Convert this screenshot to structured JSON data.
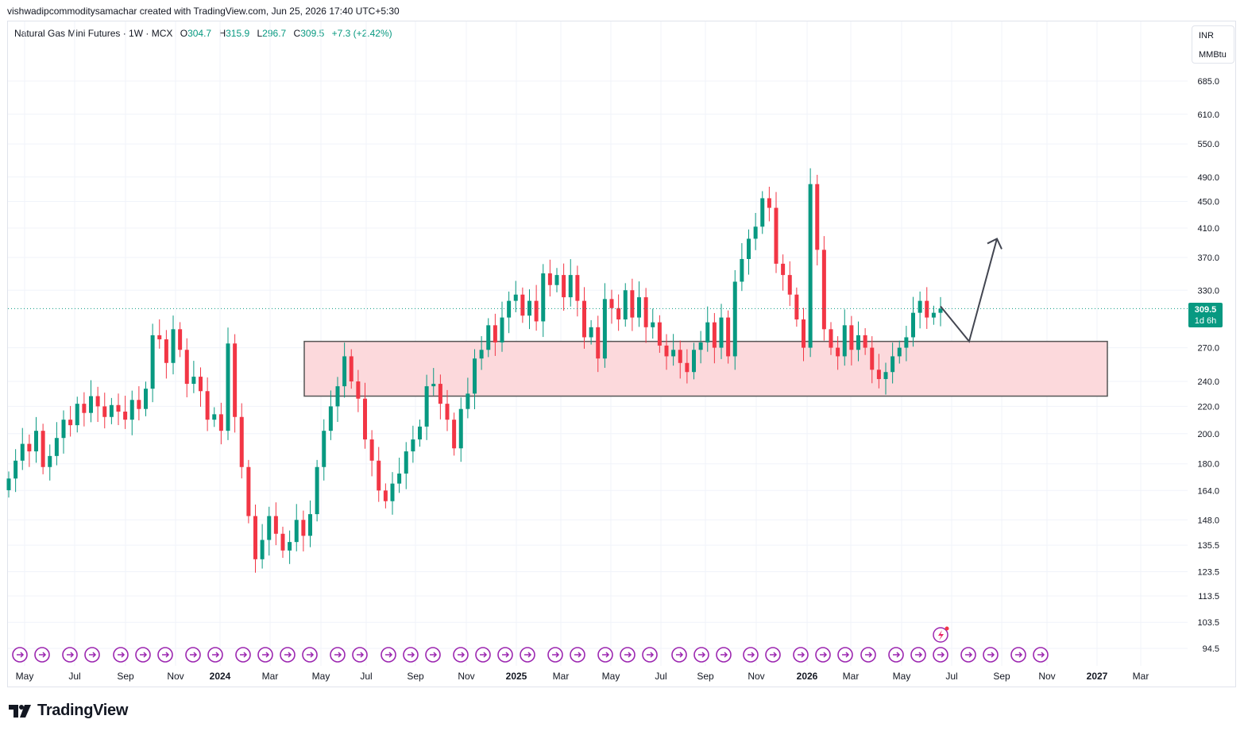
{
  "caption": "vishwadipcommoditysamachar created with TradingView.com, Jun 25, 2026 17:40 UTC+5:30",
  "legend": {
    "symbol": "Natural Gas Mini Futures · 1W · MCX",
    "o_label": "O",
    "o": "304.7",
    "h_label": "H",
    "h": "315.9",
    "l_label": "L",
    "l": "296.7",
    "c_label": "C",
    "c": "309.5",
    "change": "+7.3 (+2.42%)"
  },
  "units": {
    "currency": "INR",
    "unit": "MMBtu"
  },
  "price_badge": {
    "price": "309.5",
    "countdown": "1d 6h"
  },
  "brand": "TradingView",
  "colors": {
    "up": "#089981",
    "down": "#f23645",
    "zone_fill": "#fcd9dc",
    "zone_stroke": "#555555",
    "event_icon": "#9c27b0"
  },
  "chart_data": {
    "type": "candlestick",
    "scale": "log",
    "interval": "1W",
    "y_ticks": [
      685.0,
      610.0,
      550.0,
      490.0,
      450.0,
      410.0,
      370.0,
      330.0,
      270.0,
      240.0,
      220.0,
      200.0,
      180.0,
      164.0,
      148.0,
      135.5,
      123.5,
      113.5,
      103.5,
      94.5
    ],
    "x_ticks": [
      "May",
      "Jul",
      "Sep",
      "Nov",
      "2024",
      "Mar",
      "May",
      "Jul",
      "Sep",
      "Nov",
      "2025",
      "Mar",
      "May",
      "Jul",
      "Sep",
      "Nov",
      "2026",
      "Mar",
      "May",
      "Jul",
      "Sep",
      "Nov",
      "2027",
      "Mar"
    ],
    "last_price": 309.5,
    "support_zone": {
      "from": "2024-04",
      "to": "2026-12",
      "low": 228,
      "high": 276
    },
    "projection": [
      {
        "date": "2026-06",
        "price": 312
      },
      {
        "date": "2026-07",
        "price": 276
      },
      {
        "date": "2026-09",
        "price": 395
      }
    ],
    "weekly_closes": [
      171,
      182,
      193,
      188,
      202,
      178,
      185,
      197,
      210,
      206,
      222,
      215,
      228,
      220,
      212,
      221,
      216,
      210,
      225,
      218,
      234,
      282,
      278,
      256,
      288,
      268,
      238,
      244,
      232,
      210,
      214,
      202,
      274,
      212,
      178,
      150,
      129,
      138,
      150,
      141,
      133,
      137,
      148,
      140,
      151,
      178,
      202,
      220,
      236,
      262,
      240,
      226,
      196,
      182,
      164,
      158,
      168,
      174,
      188,
      196,
      205,
      236,
      238,
      222,
      210,
      190,
      218,
      230,
      260,
      268,
      292,
      275,
      300,
      318,
      325,
      302,
      318,
      296,
      350,
      336,
      348,
      322,
      348,
      318,
      280,
      290,
      260,
      320,
      310,
      298,
      330,
      300,
      322,
      290,
      295,
      272,
      262,
      268,
      256,
      248,
      268,
      275,
      295,
      270,
      300,
      262,
      340,
      368,
      395,
      412,
      455,
      440,
      362,
      348,
      325,
      298,
      270,
      478,
      380,
      288,
      270,
      262,
      292,
      268,
      282,
      270,
      250,
      242,
      248,
      262,
      270,
      280,
      305,
      318,
      300,
      305,
      309.5
    ],
    "event_markers": [
      "May",
      "Jul",
      "Sep",
      "Nov",
      "2024",
      "Mar",
      "May",
      "Jul",
      "Sep",
      "Nov",
      "2025",
      "Mar",
      "May",
      "Jul",
      "Sep",
      "Nov",
      "2026",
      "Mar",
      "May",
      "Jul",
      "Sep",
      "Nov"
    ]
  }
}
